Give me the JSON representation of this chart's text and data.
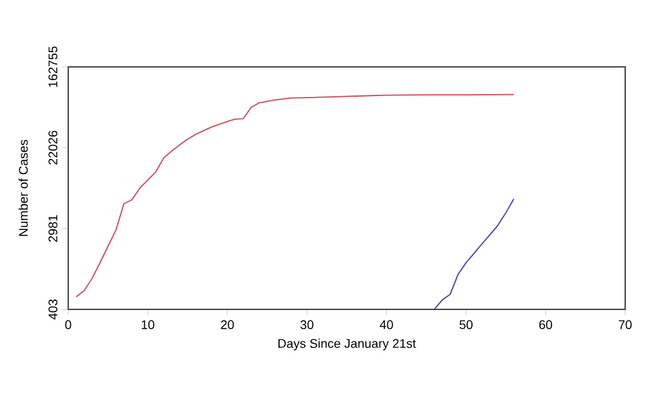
{
  "chart_data": {
    "type": "line",
    "xlabel": "Days Since January 21st",
    "ylabel": "Number of Cases",
    "log": "y",
    "xlim": [
      0,
      70
    ],
    "xticks": [
      0,
      10,
      20,
      30,
      40,
      50,
      60,
      70
    ],
    "ylim": [
      403,
      162755
    ],
    "yticks": [
      403,
      2981,
      22026,
      162755
    ],
    "grid": false,
    "marker": "none",
    "line_style": "solid",
    "series": [
      {
        "color": "#cc5060",
        "x": [
          1,
          2,
          3,
          4,
          5,
          6,
          7,
          8,
          9,
          10,
          11,
          12,
          13,
          14,
          15,
          16,
          17,
          18,
          19,
          20,
          21,
          22,
          23,
          24,
          26,
          28,
          30,
          35,
          40,
          45,
          50,
          56
        ],
        "values": [
          550,
          640,
          870,
          1280,
          1920,
          2870,
          5520,
          6070,
          8100,
          9900,
          12100,
          17100,
          20300,
          23600,
          27200,
          30600,
          33500,
          36700,
          39300,
          42100,
          44800,
          45200,
          59900,
          66900,
          71800,
          75300,
          76100,
          78500,
          80700,
          81500,
          81500,
          82300
        ]
      },
      {
        "color": "#4a4aa8",
        "x": [
          46,
          47,
          48,
          49,
          50,
          51,
          52,
          53,
          54,
          55,
          56
        ],
        "values": [
          403,
          508,
          585,
          960,
          1280,
          1610,
          2040,
          2560,
          3230,
          4400,
          6200
        ]
      }
    ]
  }
}
